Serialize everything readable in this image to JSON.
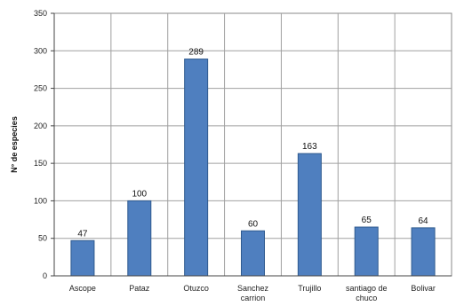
{
  "chart_data": {
    "type": "bar",
    "ylabel": "N° de especies",
    "xlabel": "",
    "ylim": [
      0,
      350
    ],
    "yticks": [
      0,
      50,
      100,
      150,
      200,
      250,
      300,
      350
    ],
    "grid": true,
    "legend": "none",
    "categories": [
      [
        "Ascope"
      ],
      [
        "Pataz"
      ],
      [
        "Otuzco"
      ],
      [
        "Sanchez",
        "carrion"
      ],
      [
        "Trujillo"
      ],
      [
        "santiago de",
        "chuco"
      ],
      [
        "Bolivar"
      ]
    ],
    "values": [
      47,
      100,
      289,
      60,
      163,
      65,
      64
    ],
    "bar_color": "#4f7fbf",
    "bar_edge_color": "#2f5a8f"
  }
}
